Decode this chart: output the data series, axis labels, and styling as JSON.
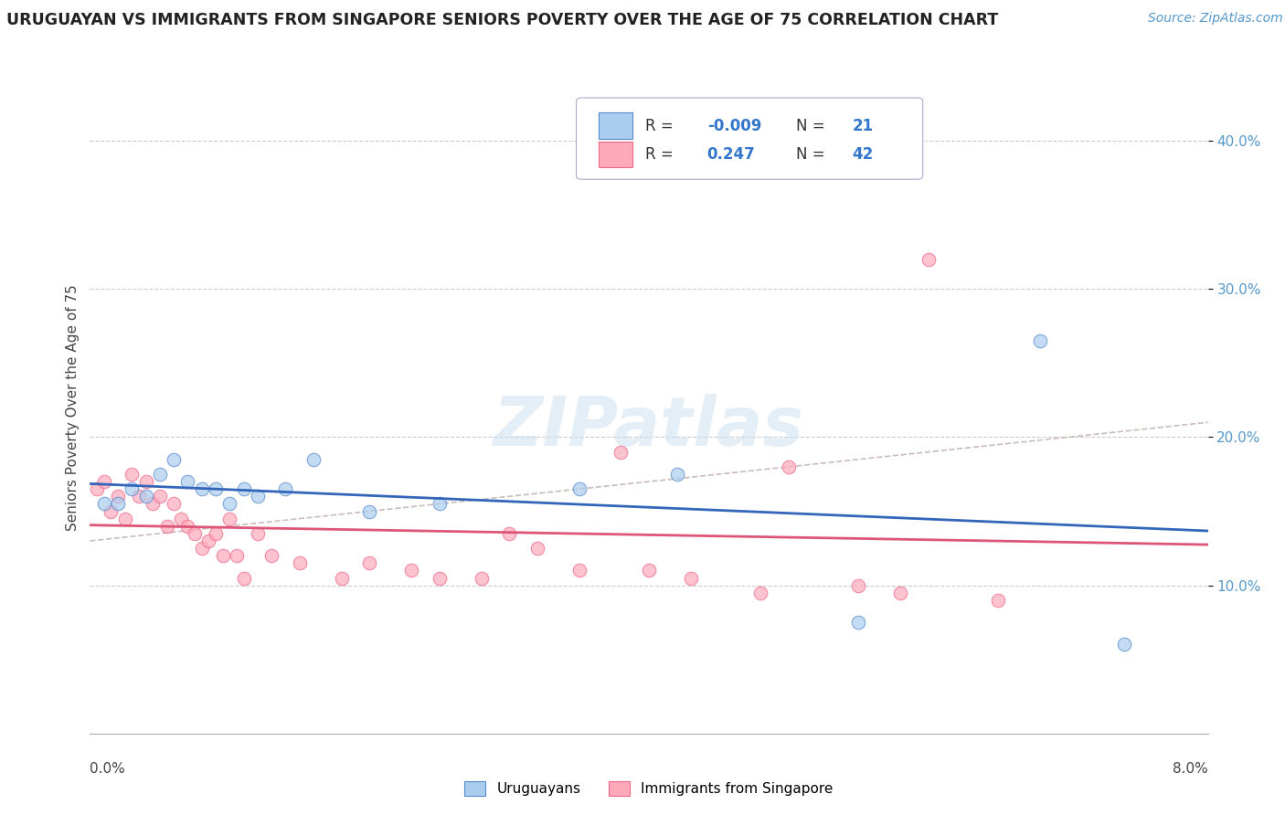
{
  "title": "URUGUAYAN VS IMMIGRANTS FROM SINGAPORE SENIORS POVERTY OVER THE AGE OF 75 CORRELATION CHART",
  "source": "Source: ZipAtlas.com",
  "ylabel": "Seniors Poverty Over the Age of 75",
  "xlim": [
    0.0,
    8.0
  ],
  "ylim": [
    0.0,
    44.0
  ],
  "yticks": [
    10.0,
    20.0,
    30.0,
    40.0
  ],
  "watermark": "ZIPatlas",
  "color_blue": "#aaccee",
  "color_blue_edge": "#5588cc",
  "color_blue_line": "#3366bb",
  "color_pink": "#ffaabb",
  "color_pink_edge": "#ee6688",
  "color_pink_line": "#dd5577",
  "color_dash": "#ccaaaa",
  "uruguayan_x": [
    0.1,
    0.2,
    0.3,
    0.4,
    0.5,
    0.6,
    0.7,
    0.8,
    0.9,
    1.0,
    1.1,
    1.2,
    1.4,
    1.6,
    2.0,
    2.5,
    3.5,
    4.2,
    5.5,
    6.8,
    7.4
  ],
  "uruguayan_y": [
    15.5,
    15.5,
    16.5,
    16.0,
    17.5,
    18.5,
    17.0,
    16.5,
    16.5,
    15.5,
    16.5,
    16.0,
    16.5,
    18.5,
    15.0,
    15.5,
    16.5,
    17.5,
    7.5,
    26.5,
    6.0
  ],
  "singapore_x": [
    0.05,
    0.1,
    0.15,
    0.2,
    0.25,
    0.3,
    0.35,
    0.4,
    0.45,
    0.5,
    0.55,
    0.6,
    0.65,
    0.7,
    0.75,
    0.8,
    0.85,
    0.9,
    0.95,
    1.0,
    1.05,
    1.1,
    1.2,
    1.3,
    1.5,
    1.8,
    2.0,
    2.3,
    2.5,
    2.8,
    3.0,
    3.2,
    3.5,
    3.8,
    4.0,
    4.3,
    4.8,
    5.0,
    5.5,
    5.8,
    6.0,
    6.5
  ],
  "singapore_y": [
    16.5,
    17.0,
    15.0,
    16.0,
    14.5,
    17.5,
    16.0,
    17.0,
    15.5,
    16.0,
    14.0,
    15.5,
    14.5,
    14.0,
    13.5,
    12.5,
    13.0,
    13.5,
    12.0,
    14.5,
    12.0,
    10.5,
    13.5,
    12.0,
    11.5,
    10.5,
    11.5,
    11.0,
    10.5,
    10.5,
    13.5,
    12.5,
    11.0,
    19.0,
    11.0,
    10.5,
    9.5,
    18.0,
    10.0,
    9.5,
    32.0,
    9.0
  ],
  "legend_r1": "-0.009",
  "legend_n1": "21",
  "legend_r2": "0.247",
  "legend_n2": "42"
}
